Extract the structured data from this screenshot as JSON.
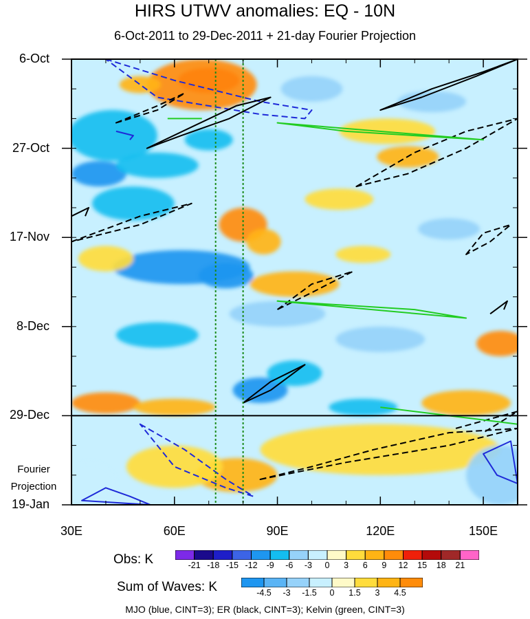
{
  "chart_data": {
    "type": "heatmap",
    "title": "HIRS UTWV anomalies: EQ - 10N",
    "subtitle": "6-Oct-2011 to 29-Dec-2011 + 21-day Fourier Projection",
    "x_axis": {
      "range": [
        30,
        160
      ],
      "ticks": [
        30,
        60,
        90,
        120,
        150
      ],
      "tick_labels": [
        "30E",
        "60E",
        "90E",
        "120E",
        "150E"
      ]
    },
    "y_axis": {
      "range_days": [
        0,
        105
      ],
      "ticks_days": [
        0,
        21,
        42,
        63,
        84,
        105
      ],
      "tick_labels": [
        "6-Oct",
        "27-Oct",
        "17-Nov",
        "8-Dec",
        "29-Dec",
        "19-Jan"
      ],
      "reversed": true
    },
    "projection_start_day": 84,
    "projection_label": "Fourier Projection",
    "reference_lines_lon": [
      72,
      80
    ],
    "obs_colorbar": {
      "title": "Obs: K",
      "levels": [
        "-21",
        "-18",
        "-15",
        "-12",
        "-9",
        "-6",
        "-3",
        "0",
        "3",
        "6",
        "9",
        "12",
        "15",
        "18",
        "21"
      ],
      "colors": [
        "#7d2ae8",
        "#1a0a8c",
        "#1e1ec8",
        "#3c64e6",
        "#1e96f0",
        "#14bef0",
        "#96d2fa",
        "#c8f0ff",
        "#fffac8",
        "#ffdc3c",
        "#ffb414",
        "#ff8c0a",
        "#f0200a",
        "#b40a0a",
        "#a02828",
        "#ff64c8"
      ]
    },
    "sum_colorbar": {
      "title": "Sum of Waves: K",
      "levels": [
        "-4.5",
        "-3",
        "-1.5",
        "0",
        "1.5",
        "3",
        "4.5"
      ],
      "colors": [
        "#1e96f0",
        "#5ab4f5",
        "#96d2fa",
        "#c8f0ff",
        "#fffac8",
        "#ffdc3c",
        "#ffb414",
        "#ff8c0a"
      ]
    },
    "blobs": [
      {
        "lon": 70,
        "day": 5,
        "rx": 9,
        "ry": 3,
        "v": 14
      },
      {
        "lon": 68,
        "day": 6,
        "rx": 16,
        "ry": 6,
        "v": 9
      },
      {
        "lon": 50,
        "day": 6,
        "rx": 6,
        "ry": 2,
        "v": 6
      },
      {
        "lon": 42,
        "day": 18,
        "rx": 13,
        "ry": 6,
        "v": -9
      },
      {
        "lon": 38,
        "day": 27,
        "rx": 8,
        "ry": 3,
        "v": -11
      },
      {
        "lon": 55,
        "day": 25,
        "rx": 12,
        "ry": 3,
        "v": -8
      },
      {
        "lon": 48,
        "day": 34,
        "rx": 12,
        "ry": 4,
        "v": -7
      },
      {
        "lon": 70,
        "day": 19,
        "rx": 7,
        "ry": 2.5,
        "v": -7
      },
      {
        "lon": 80,
        "day": 39,
        "rx": 7,
        "ry": 4,
        "v": 9
      },
      {
        "lon": 86,
        "day": 43,
        "rx": 5,
        "ry": 3,
        "v": 6
      },
      {
        "lon": 62,
        "day": 49,
        "rx": 20,
        "ry": 4,
        "v": -10
      },
      {
        "lon": 75,
        "day": 51,
        "rx": 8,
        "ry": 3,
        "v": -12
      },
      {
        "lon": 40,
        "day": 47,
        "rx": 8,
        "ry": 3,
        "v": 5
      },
      {
        "lon": 95,
        "day": 53,
        "rx": 13,
        "ry": 3,
        "v": 7
      },
      {
        "lon": 115,
        "day": 46,
        "rx": 8,
        "ry": 2,
        "v": 5
      },
      {
        "lon": 90,
        "day": 60,
        "rx": 14,
        "ry": 3,
        "v": -6
      },
      {
        "lon": 55,
        "day": 65,
        "rx": 12,
        "ry": 3,
        "v": -7
      },
      {
        "lon": 128,
        "day": 23,
        "rx": 9,
        "ry": 2.5,
        "v": 8
      },
      {
        "lon": 122,
        "day": 17,
        "rx": 14,
        "ry": 3,
        "v": 5
      },
      {
        "lon": 108,
        "day": 33,
        "rx": 10,
        "ry": 2.5,
        "v": 5
      },
      {
        "lon": 100,
        "day": 7,
        "rx": 9,
        "ry": 3,
        "v": -6
      },
      {
        "lon": 135,
        "day": 10,
        "rx": 10,
        "ry": 2.5,
        "v": -5
      },
      {
        "lon": 140,
        "day": 40,
        "rx": 9,
        "ry": 2.5,
        "v": -6
      },
      {
        "lon": 120,
        "day": 66,
        "rx": 13,
        "ry": 3,
        "v": -5
      },
      {
        "lon": 155,
        "day": 67,
        "rx": 7,
        "ry": 3,
        "v": 9
      },
      {
        "lon": 85,
        "day": 78,
        "rx": 8,
        "ry": 3,
        "v": -11
      },
      {
        "lon": 95,
        "day": 74,
        "rx": 8,
        "ry": 3,
        "v": -7
      },
      {
        "lon": 40,
        "day": 81,
        "rx": 10,
        "ry": 2.5,
        "v": 9
      },
      {
        "lon": 60,
        "day": 82,
        "rx": 12,
        "ry": 2,
        "v": 7
      },
      {
        "lon": 145,
        "day": 81,
        "rx": 13,
        "ry": 3,
        "v": 8
      },
      {
        "lon": 115,
        "day": 82,
        "rx": 10,
        "ry": 2,
        "v": -7
      },
      {
        "lon": 78,
        "day": 98,
        "rx": 12,
        "ry": 4,
        "v": 3.5
      },
      {
        "lon": 60,
        "day": 96,
        "rx": 14,
        "ry": 5,
        "v": 2
      },
      {
        "lon": 120,
        "day": 92,
        "rx": 35,
        "ry": 6,
        "v": 1.5
      },
      {
        "lon": 155,
        "day": 98,
        "rx": 10,
        "ry": 7,
        "v": -2
      },
      {
        "lon": 35,
        "day": 100,
        "rx": 8,
        "ry": 5,
        "v": -1
      }
    ],
    "contours": [
      {
        "kind": "mjo",
        "dashed": true,
        "points": [
          [
            40,
            0
          ],
          [
            60,
            5
          ],
          [
            85,
            10
          ],
          [
            100,
            12
          ],
          [
            98,
            14
          ],
          [
            85,
            13
          ],
          [
            70,
            11
          ],
          [
            55,
            9
          ]
        ]
      },
      {
        "kind": "mjo",
        "dashed": false,
        "points": [
          [
            43,
            17
          ],
          [
            48,
            18
          ],
          [
            47,
            19
          ]
        ]
      },
      {
        "kind": "mjo",
        "dashed": true,
        "points": [
          [
            50,
            86
          ],
          [
            63,
            92
          ],
          [
            75,
            99
          ],
          [
            83,
            103
          ],
          [
            75,
            101
          ],
          [
            60,
            96
          ]
        ]
      },
      {
        "kind": "mjo",
        "dashed": false,
        "points": [
          [
            33,
            104
          ],
          [
            40,
            101
          ],
          [
            47,
            103
          ],
          [
            53,
            105
          ]
        ]
      },
      {
        "kind": "mjo",
        "dashed": false,
        "points": [
          [
            158,
            90
          ],
          [
            150,
            93
          ],
          [
            154,
            98
          ],
          [
            160,
            100
          ]
        ]
      },
      {
        "kind": "er",
        "dashed": false,
        "points": [
          [
            52,
            21
          ],
          [
            65,
            16
          ],
          [
            78,
            11
          ],
          [
            88,
            9
          ],
          [
            76,
            14
          ],
          [
            62,
            18
          ]
        ]
      },
      {
        "kind": "er",
        "dashed": false,
        "points": [
          [
            120,
            12
          ],
          [
            135,
            7
          ],
          [
            150,
            3
          ],
          [
            160,
            0
          ],
          [
            148,
            4
          ],
          [
            132,
            9
          ]
        ]
      },
      {
        "kind": "er",
        "dashed": true,
        "points": [
          [
            43,
            15
          ],
          [
            55,
            11
          ],
          [
            63,
            8
          ],
          [
            55,
            12
          ]
        ]
      },
      {
        "kind": "er",
        "dashed": true,
        "points": [
          [
            30,
            43
          ],
          [
            50,
            37
          ],
          [
            65,
            34
          ],
          [
            50,
            39
          ]
        ]
      },
      {
        "kind": "er",
        "dashed": true,
        "points": [
          [
            113,
            30
          ],
          [
            130,
            22
          ],
          [
            145,
            17
          ],
          [
            160,
            14
          ],
          [
            145,
            21
          ],
          [
            128,
            27
          ]
        ]
      },
      {
        "kind": "er",
        "dashed": true,
        "points": [
          [
            90,
            59
          ],
          [
            100,
            53
          ],
          [
            112,
            50
          ],
          [
            100,
            55
          ]
        ]
      },
      {
        "kind": "er",
        "dashed": true,
        "points": [
          [
            145,
            46
          ],
          [
            150,
            41
          ],
          [
            158,
            39
          ],
          [
            152,
            43
          ]
        ]
      },
      {
        "kind": "er",
        "dashed": false,
        "points": [
          [
            152,
            60
          ],
          [
            157,
            57
          ],
          [
            156,
            59
          ]
        ]
      },
      {
        "kind": "er",
        "dashed": false,
        "points": [
          [
            80,
            81
          ],
          [
            88,
            76
          ],
          [
            98,
            72
          ],
          [
            88,
            78
          ]
        ]
      },
      {
        "kind": "er",
        "dashed": false,
        "points": [
          [
            30,
            37
          ],
          [
            35,
            35
          ],
          [
            34,
            37
          ]
        ]
      },
      {
        "kind": "er",
        "dashed": true,
        "points": [
          [
            85,
            99
          ],
          [
            100,
            96
          ],
          [
            118,
            92
          ],
          [
            140,
            88
          ],
          [
            160,
            87
          ],
          [
            140,
            91
          ],
          [
            110,
            95
          ]
        ]
      },
      {
        "kind": "er",
        "dashed": true,
        "points": [
          [
            142,
            87
          ],
          [
            160,
            83
          ],
          [
            150,
            88
          ]
        ]
      },
      {
        "kind": "kelvin",
        "dashed": false,
        "points": [
          [
            90,
            15
          ],
          [
            110,
            17
          ],
          [
            130,
            18
          ],
          [
            150,
            19
          ]
        ]
      },
      {
        "kind": "kelvin",
        "dashed": false,
        "points": [
          [
            90,
            57
          ],
          [
            110,
            58
          ],
          [
            130,
            59
          ],
          [
            145,
            61
          ]
        ]
      },
      {
        "kind": "kelvin",
        "dashed": false,
        "points": [
          [
            120,
            82
          ],
          [
            140,
            84
          ],
          [
            160,
            86
          ]
        ]
      },
      {
        "kind": "kelvin",
        "dashed": false,
        "points": [
          [
            58,
            14
          ],
          [
            68,
            14
          ]
        ]
      }
    ]
  },
  "footer": "MJO (blue, CINT=3); ER (black, CINT=3); Kelvin (green, CINT=3)"
}
